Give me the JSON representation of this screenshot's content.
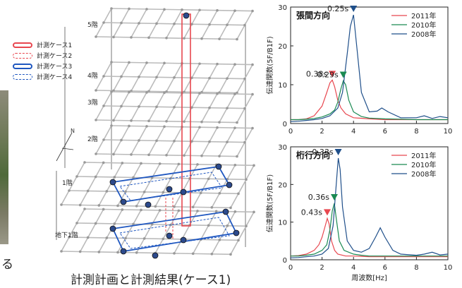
{
  "caption": "計測計画と計測結果(ケース1)",
  "cut_word": "る",
  "left_legend": [
    {
      "label": "計測ケース1",
      "color": "#e8474f",
      "style": "double-solid"
    },
    {
      "label": "計測ケース2",
      "color": "#e8474f",
      "style": "dashed"
    },
    {
      "label": "計測ケース3",
      "color": "#1f57c0",
      "style": "double-solid"
    },
    {
      "label": "計測ケース4",
      "color": "#1f57c0",
      "style": "dashed"
    }
  ],
  "floors": [
    "5階",
    "4階",
    "3階",
    "2階",
    "1階",
    "地下1階"
  ],
  "north_symbol": "N",
  "colors": {
    "s2011": "#e8474f",
    "s2010": "#1a8a52",
    "s2008": "#1f4f8a"
  },
  "chart_data": [
    {
      "type": "line",
      "title": "張間方向",
      "xlabel": "",
      "ylabel": "伝達関数(5F/B1F)",
      "xlim": [
        0,
        10
      ],
      "ylim": [
        0,
        30
      ],
      "xticks": [
        "0",
        "2",
        "4",
        "6",
        "8",
        "10"
      ],
      "yticks": [
        "0",
        "10",
        "20",
        "30"
      ],
      "legend_position": "top-right",
      "series": [
        {
          "name": "2011年",
          "x": [
            0,
            0.5,
            1,
            1.5,
            2,
            2.3,
            2.5,
            2.65,
            2.8,
            3,
            3.2,
            3.5,
            4,
            5,
            6,
            7,
            8,
            9,
            10
          ],
          "y": [
            1,
            1,
            1.2,
            2,
            4.5,
            8,
            10.5,
            11.2,
            9.5,
            6,
            4,
            2.5,
            1.5,
            1.2,
            1,
            1,
            1,
            1,
            1
          ]
        },
        {
          "name": "2010年",
          "x": [
            0,
            0.5,
            1,
            1.5,
            2,
            2.5,
            2.8,
            3,
            3.2,
            3.35,
            3.5,
            3.7,
            4,
            4.5,
            5,
            6,
            7,
            8,
            9,
            10
          ],
          "y": [
            1,
            1,
            1.1,
            1.3,
            1.7,
            2.5,
            3.5,
            5.5,
            9,
            11,
            10,
            6,
            3,
            1.8,
            1.4,
            1.2,
            1.1,
            1,
            1,
            1
          ]
        },
        {
          "name": "2008年",
          "x": [
            0,
            0.5,
            1,
            1.5,
            2,
            2.5,
            3,
            3.3,
            3.6,
            3.8,
            4,
            4.2,
            4.5,
            5,
            5.5,
            5.8,
            6.2,
            7,
            8,
            8.5,
            9,
            9.5,
            10
          ],
          "y": [
            0.5,
            0.6,
            0.8,
            1,
            1.3,
            2,
            4,
            8,
            18,
            25,
            28,
            20,
            8,
            3,
            3.2,
            4,
            3,
            1.5,
            1.5,
            2,
            1.3,
            1.8,
            1.5
          ]
        }
      ],
      "annotations": [
        {
          "text": "0.38s",
          "x": 2.65,
          "y": 11.2,
          "color": "#e8474f"
        },
        {
          "text": "0.29s",
          "x": 3.35,
          "y": 11,
          "color": "#1a8a52"
        },
        {
          "text": "0.25s",
          "x": 4.0,
          "y": 28,
          "color": "#1f4f8a"
        }
      ]
    },
    {
      "type": "line",
      "title": "桁行方向",
      "xlabel": "周波数[Hz]",
      "ylabel": "伝達関数(5F/B1F)",
      "xlim": [
        0,
        10
      ],
      "ylim": [
        0,
        30
      ],
      "xticks": [
        "0",
        "2",
        "4",
        "6",
        "8",
        "10"
      ],
      "yticks": [
        "0",
        "10",
        "20",
        "30"
      ],
      "legend_position": "top-right",
      "series": [
        {
          "name": "2011年",
          "x": [
            0,
            0.5,
            1,
            1.5,
            1.8,
            2,
            2.2,
            2.33,
            2.45,
            2.6,
            2.8,
            3,
            3.5,
            4,
            5,
            6,
            7,
            8,
            9,
            10
          ],
          "y": [
            1,
            1.1,
            1.5,
            2.5,
            4,
            6,
            9,
            11,
            9.5,
            5,
            2.5,
            1.5,
            1,
            1,
            0.8,
            0.8,
            0.8,
            0.8,
            0.8,
            0.8
          ]
        },
        {
          "name": "2010年",
          "x": [
            0,
            0.5,
            1,
            1.5,
            2,
            2.3,
            2.5,
            2.65,
            2.78,
            2.9,
            3.1,
            3.4,
            4,
            4.5,
            5,
            6,
            7,
            8,
            9,
            10
          ],
          "y": [
            1,
            1,
            1.2,
            1.5,
            2.5,
            4,
            8,
            13,
            15,
            11,
            5,
            2.5,
            1.5,
            1.2,
            1,
            1,
            1,
            1,
            1,
            1
          ]
        },
        {
          "name": "2008年",
          "x": [
            0,
            0.5,
            1,
            1.5,
            2,
            2.4,
            2.7,
            2.9,
            3.03,
            3.15,
            3.3,
            3.6,
            4,
            4.5,
            5,
            5.4,
            5.7,
            6,
            6.5,
            7,
            8,
            8.5,
            9,
            9.5,
            10
          ],
          "y": [
            0.5,
            0.6,
            0.8,
            1,
            1.5,
            3,
            9,
            20,
            27,
            24,
            14,
            5,
            2.5,
            2,
            3,
            6,
            8.5,
            6,
            2.5,
            1.5,
            1.2,
            1.5,
            2,
            1.3,
            1.5
          ]
        }
      ],
      "annotations": [
        {
          "text": "0.43s",
          "x": 2.33,
          "y": 11,
          "color": "#e8474f"
        },
        {
          "text": "0.36s",
          "x": 2.78,
          "y": 15,
          "color": "#1a8a52"
        },
        {
          "text": "0.33s",
          "x": 3.03,
          "y": 27,
          "color": "#1f4f8a"
        }
      ]
    }
  ]
}
